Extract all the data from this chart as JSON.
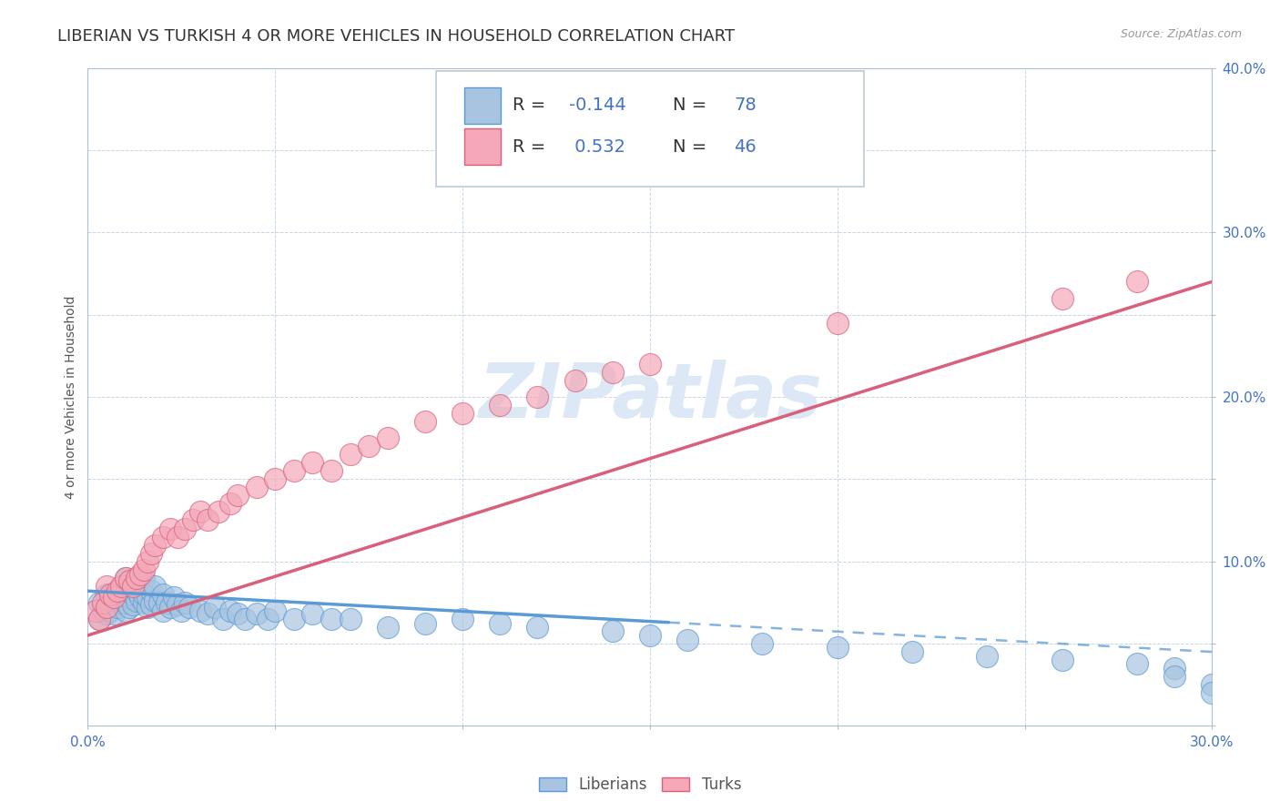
{
  "title": "LIBERIAN VS TURKISH 4 OR MORE VEHICLES IN HOUSEHOLD CORRELATION CHART",
  "source_text": "Source: ZipAtlas.com",
  "ylabel_text": "4 or more Vehicles in Household",
  "liberian_R": -0.144,
  "liberian_N": 78,
  "turkish_R": 0.532,
  "turkish_N": 46,
  "xlim": [
    0.0,
    0.3
  ],
  "ylim": [
    0.0,
    0.4
  ],
  "xticks": [
    0.0,
    0.05,
    0.1,
    0.15,
    0.2,
    0.25,
    0.3
  ],
  "yticks": [
    0.0,
    0.05,
    0.1,
    0.15,
    0.2,
    0.25,
    0.3,
    0.35,
    0.4
  ],
  "blue_color": "#a8c4e0",
  "pink_color": "#f4a8b8",
  "blue_line_color": "#5b9bd5",
  "pink_line_color": "#d9607a",
  "background_color": "#ffffff",
  "grid_color": "#c8d4e8",
  "watermark_color": "#dce8f5",
  "title_fontsize": 13,
  "axis_label_fontsize": 10,
  "tick_fontsize": 11,
  "legend_R_N_color": "#4472c4",
  "blue_scatter_x": [
    0.003,
    0.003,
    0.004,
    0.005,
    0.005,
    0.005,
    0.006,
    0.006,
    0.007,
    0.007,
    0.008,
    0.008,
    0.008,
    0.009,
    0.009,
    0.01,
    0.01,
    0.01,
    0.01,
    0.011,
    0.011,
    0.012,
    0.012,
    0.013,
    0.013,
    0.014,
    0.014,
    0.015,
    0.015,
    0.015,
    0.016,
    0.016,
    0.017,
    0.017,
    0.018,
    0.018,
    0.019,
    0.02,
    0.02,
    0.021,
    0.022,
    0.023,
    0.024,
    0.025,
    0.026,
    0.027,
    0.03,
    0.032,
    0.034,
    0.036,
    0.038,
    0.04,
    0.042,
    0.045,
    0.048,
    0.05,
    0.055,
    0.06,
    0.065,
    0.07,
    0.08,
    0.09,
    0.1,
    0.11,
    0.12,
    0.14,
    0.15,
    0.16,
    0.18,
    0.2,
    0.22,
    0.24,
    0.26,
    0.28,
    0.29,
    0.29,
    0.3,
    0.3
  ],
  "blue_scatter_y": [
    0.065,
    0.075,
    0.07,
    0.068,
    0.072,
    0.08,
    0.07,
    0.075,
    0.068,
    0.08,
    0.072,
    0.078,
    0.082,
    0.075,
    0.085,
    0.07,
    0.075,
    0.08,
    0.09,
    0.072,
    0.078,
    0.074,
    0.08,
    0.076,
    0.082,
    0.078,
    0.085,
    0.075,
    0.08,
    0.09,
    0.072,
    0.078,
    0.074,
    0.082,
    0.076,
    0.085,
    0.075,
    0.07,
    0.08,
    0.075,
    0.072,
    0.078,
    0.074,
    0.07,
    0.075,
    0.072,
    0.07,
    0.068,
    0.072,
    0.065,
    0.07,
    0.068,
    0.065,
    0.068,
    0.065,
    0.07,
    0.065,
    0.068,
    0.065,
    0.065,
    0.06,
    0.062,
    0.065,
    0.062,
    0.06,
    0.058,
    0.055,
    0.052,
    0.05,
    0.048,
    0.045,
    0.042,
    0.04,
    0.038,
    0.035,
    0.03,
    0.025,
    0.02
  ],
  "pink_scatter_x": [
    0.002,
    0.003,
    0.004,
    0.005,
    0.005,
    0.006,
    0.007,
    0.008,
    0.009,
    0.01,
    0.011,
    0.012,
    0.013,
    0.014,
    0.015,
    0.016,
    0.017,
    0.018,
    0.02,
    0.022,
    0.024,
    0.026,
    0.028,
    0.03,
    0.032,
    0.035,
    0.038,
    0.04,
    0.045,
    0.05,
    0.055,
    0.06,
    0.065,
    0.07,
    0.075,
    0.08,
    0.09,
    0.1,
    0.11,
    0.12,
    0.13,
    0.14,
    0.15,
    0.2,
    0.26,
    0.28
  ],
  "pink_scatter_y": [
    0.07,
    0.065,
    0.075,
    0.072,
    0.085,
    0.08,
    0.078,
    0.082,
    0.085,
    0.09,
    0.088,
    0.085,
    0.09,
    0.092,
    0.095,
    0.1,
    0.105,
    0.11,
    0.115,
    0.12,
    0.115,
    0.12,
    0.125,
    0.13,
    0.125,
    0.13,
    0.135,
    0.14,
    0.145,
    0.15,
    0.155,
    0.16,
    0.155,
    0.165,
    0.17,
    0.175,
    0.185,
    0.19,
    0.195,
    0.2,
    0.21,
    0.215,
    0.22,
    0.245,
    0.26,
    0.27
  ],
  "blue_line_start_x": 0.0,
  "blue_line_start_y": 0.082,
  "blue_line_solid_end_x": 0.155,
  "blue_line_end_x": 0.3,
  "blue_line_end_y": 0.045,
  "pink_line_start_x": 0.0,
  "pink_line_start_y": 0.055,
  "pink_line_end_x": 0.3,
  "pink_line_end_y": 0.27
}
